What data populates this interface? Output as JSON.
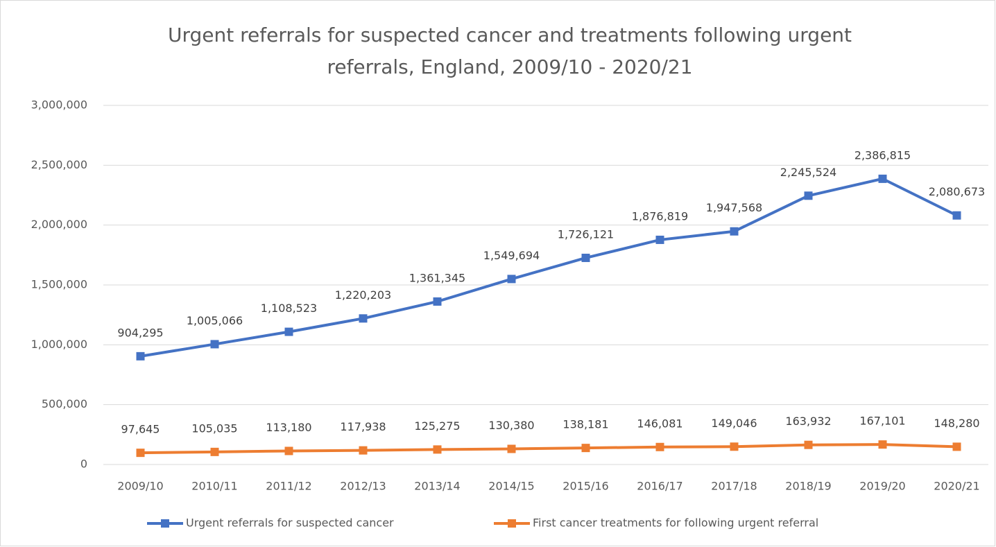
{
  "chart_data": {
    "type": "line",
    "title": "Urgent referrals for suspected cancer and treatments following urgent referrals, England, 2009/10 - 2020/21",
    "categories": [
      "2009/10",
      "2010/11",
      "2011/12",
      "2012/13",
      "2013/14",
      "2014/15",
      "2015/16",
      "2016/17",
      "2017/18",
      "2018/19",
      "2019/20",
      "2020/21"
    ],
    "series": [
      {
        "name": "Urgent referrals for suspected cancer",
        "color": "#4472c4",
        "values": [
          904295,
          1005066,
          1108523,
          1220203,
          1361345,
          1549694,
          1726121,
          1876819,
          1947568,
          2245524,
          2386815,
          2080673
        ],
        "value_labels": [
          "904,295",
          "1,005,066",
          "1,108,523",
          "1,220,203",
          "1,361,345",
          "1,549,694",
          "1,726,121",
          "1,876,819",
          "1,947,568",
          "2,245,524",
          "2,386,815",
          "2,080,673"
        ]
      },
      {
        "name": "First cancer treatments for following urgent referral",
        "color": "#ed7d31",
        "values": [
          97645,
          105035,
          113180,
          117938,
          125275,
          130380,
          138181,
          146081,
          149046,
          163932,
          167101,
          148280
        ],
        "value_labels": [
          "97,645",
          "105,035",
          "113,180",
          "117,938",
          "125,275",
          "130,380",
          "138,181",
          "146,081",
          "149,046",
          "163,932",
          "167,101",
          "148,280"
        ]
      }
    ],
    "ylim": [
      0,
      3000000
    ],
    "yticks": [
      0,
      {
        "value": 500000,
        "label": "500,000"
      },
      {
        "value": 1000000,
        "label": "1,000,000"
      },
      {
        "value": 1500000,
        "label": "1,500,000"
      },
      {
        "value": 2000000,
        "label": "2,000,000"
      },
      {
        "value": 2500000,
        "label": "2,500,000"
      },
      {
        "value": 3000000,
        "label": "3,000,000"
      }
    ],
    "grid": true,
    "legend": "bottom"
  }
}
